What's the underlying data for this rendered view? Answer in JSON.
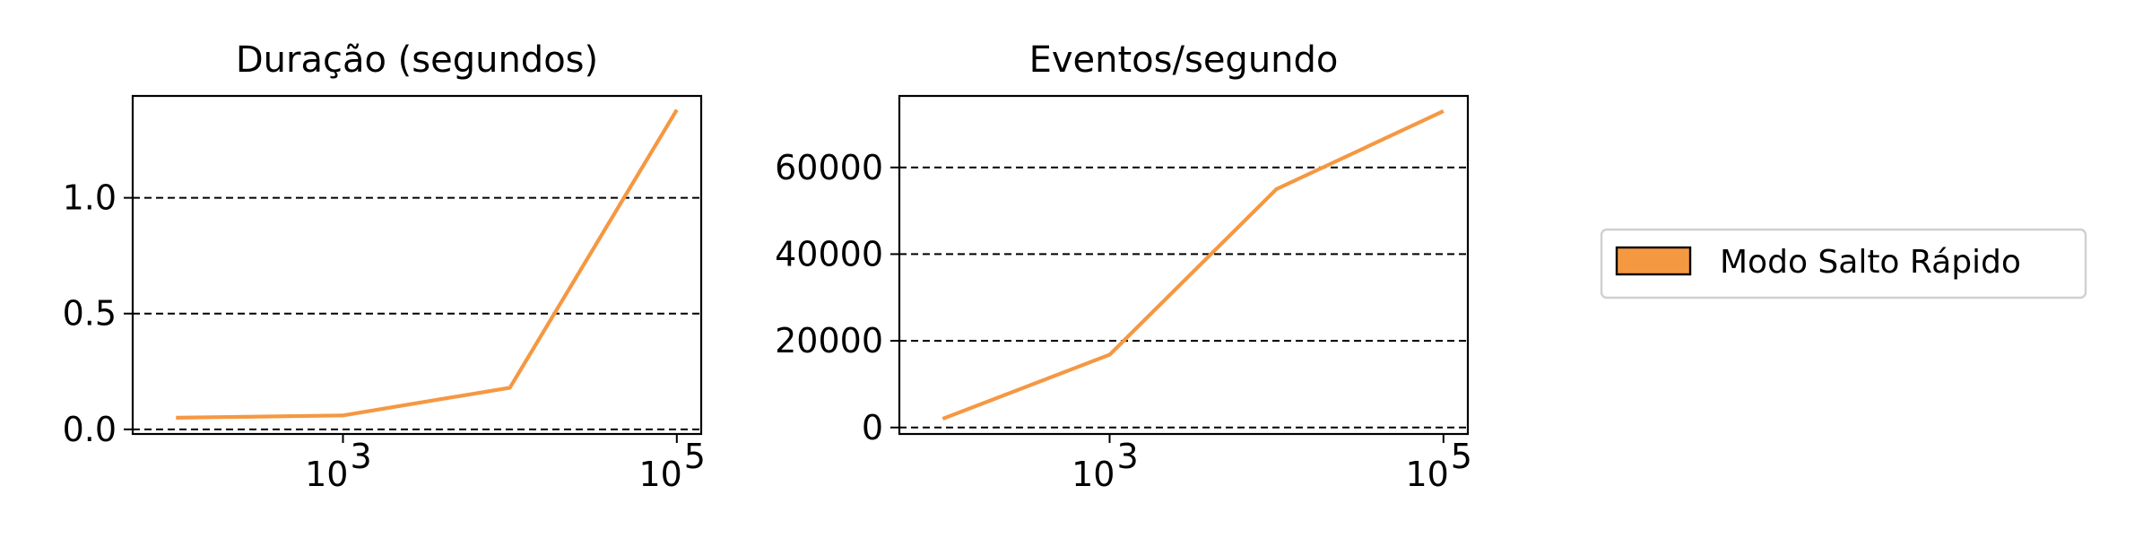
{
  "chart_data": [
    {
      "type": "line",
      "title": "Duração (segundos)",
      "xlabel": "",
      "ylabel": "",
      "xscale": "log",
      "xlim": [
        55,
        140000
      ],
      "ylim": [
        -0.02,
        1.44
      ],
      "x_ticks": [
        {
          "value": 1000,
          "base": "10",
          "exp": "3"
        },
        {
          "value": 100000,
          "base": "10",
          "exp": "5"
        }
      ],
      "y_ticks": [
        {
          "value": 0.0,
          "label": "0.0"
        },
        {
          "value": 0.5,
          "label": "0.5"
        },
        {
          "value": 1.0,
          "label": "1.0"
        }
      ],
      "grid": "y-dashed",
      "series": [
        {
          "name": "Modo Salto Rápido",
          "x": [
            100,
            1000,
            10000,
            100000
          ],
          "y": [
            0.05,
            0.06,
            0.18,
            1.38
          ]
        }
      ]
    },
    {
      "type": "line",
      "title": "Eventos/segundo",
      "xlabel": "",
      "ylabel": "",
      "xscale": "log",
      "xlim": [
        55,
        140000
      ],
      "ylim": [
        -1500,
        76500
      ],
      "x_ticks": [
        {
          "value": 1000,
          "base": "10",
          "exp": "3"
        },
        {
          "value": 100000,
          "base": "10",
          "exp": "5"
        }
      ],
      "y_ticks": [
        {
          "value": 0,
          "label": "0"
        },
        {
          "value": 20000,
          "label": "20000"
        },
        {
          "value": 40000,
          "label": "40000"
        },
        {
          "value": 60000,
          "label": "60000"
        }
      ],
      "grid": "y-dashed",
      "series": [
        {
          "name": "Modo Salto Rápido",
          "x": [
            100,
            1000,
            10000,
            100000
          ],
          "y": [
            2000,
            16800,
            55000,
            73000
          ]
        }
      ]
    }
  ],
  "legend": {
    "placement": "right",
    "entries": [
      {
        "label": "Modo Salto Rápido",
        "color": "#f59842"
      }
    ]
  },
  "colors": {
    "series": "#f59842",
    "legend_swatch_border": "#000000"
  }
}
